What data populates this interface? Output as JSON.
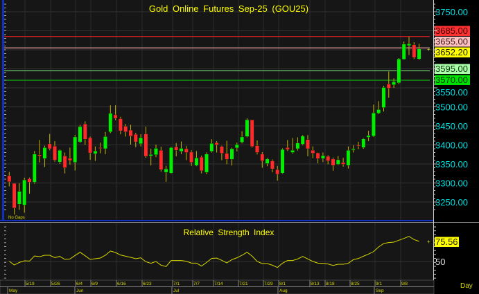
{
  "window": {
    "no_gaps_label": "No Gaps",
    "period_label": "Day"
  },
  "chart_data": [
    {
      "type": "candlestick",
      "title": "Gold Online Futures Sep-25 (GOU25)",
      "ylim": [
        3200,
        3780
      ],
      "y_ticks": [
        "3750.00",
        "3550.00",
        "3500.00",
        "3450.00",
        "3400.00",
        "3350.00",
        "3300.00",
        "3250.00"
      ],
      "y_tick_values": [
        3750,
        3550,
        3500,
        3450,
        3400,
        3350,
        3300,
        3250
      ],
      "grid": true,
      "colors": {
        "up": "#00ee00",
        "down": "#ff2a2a",
        "wick": "#c8b400",
        "axis_text": "#00e0e0",
        "title": "#ffff00"
      },
      "levels": [
        {
          "value": 3685,
          "label": "3685.00",
          "line": "#e02020",
          "bg": "#ff3030",
          "fg": "#400000"
        },
        {
          "value": 3655,
          "label": "3655.00",
          "line": "#e8a0a0",
          "bg": "#ffc0c0",
          "fg": "#402020"
        },
        {
          "value": 3652.2,
          "label": "3652.20",
          "line": null,
          "bg": "#ffff00",
          "fg": "#202000"
        },
        {
          "value": 3595,
          "label": "3595.00",
          "line": "#70d070",
          "bg": "#a8ffa8",
          "fg": "#103010"
        },
        {
          "value": 3570,
          "label": "3570.00",
          "line": "#10b010",
          "bg": "#00e000",
          "fg": "#003000"
        }
      ],
      "ohlc": [
        [
          3319,
          3329,
          3291,
          3303
        ],
        [
          3299,
          3299,
          3217,
          3234
        ],
        [
          3244,
          3299,
          3229,
          3278
        ],
        [
          3242,
          3314,
          3222,
          3308
        ],
        [
          3311,
          3314,
          3272,
          3302
        ],
        [
          3302,
          3384,
          3298,
          3376
        ],
        [
          3374,
          3413,
          3354,
          3371
        ],
        [
          3364,
          3398,
          3342,
          3393
        ],
        [
          3403,
          3429,
          3386,
          3390
        ],
        [
          3397,
          3410,
          3356,
          3360
        ],
        [
          3355,
          3388,
          3350,
          3386
        ],
        [
          3371,
          3380,
          3325,
          3340
        ],
        [
          3365,
          3393,
          3348,
          3359
        ],
        [
          3354,
          3426,
          3333,
          3421
        ],
        [
          3408,
          3453,
          3405,
          3448
        ],
        [
          3455,
          3462,
          3400,
          3415
        ],
        [
          3419,
          3422,
          3361,
          3379
        ],
        [
          3377,
          3396,
          3358,
          3384
        ],
        [
          3393,
          3406,
          3378,
          3391
        ],
        [
          3390,
          3434,
          3376,
          3422
        ],
        [
          3434,
          3504,
          3431,
          3483
        ],
        [
          3479,
          3504,
          3465,
          3470
        ],
        [
          3469,
          3474,
          3428,
          3437
        ],
        [
          3449,
          3455,
          3422,
          3434
        ],
        [
          3439,
          3453,
          3401,
          3423
        ],
        [
          3428,
          3432,
          3394,
          3408
        ],
        [
          3403,
          3428,
          3396,
          3419
        ],
        [
          3429,
          3448,
          3366,
          3370
        ],
        [
          3371,
          3390,
          3346,
          3375
        ],
        [
          3374,
          3401,
          3368,
          3391
        ],
        [
          3386,
          3395,
          3330,
          3335
        ],
        [
          3328,
          3345,
          3303,
          3337
        ],
        [
          3326,
          3395,
          3324,
          3393
        ],
        [
          3395,
          3405,
          3370,
          3386
        ],
        [
          3383,
          3409,
          3376,
          3391
        ],
        [
          3390,
          3397,
          3360,
          3380
        ],
        [
          3381,
          3386,
          3345,
          3354
        ],
        [
          3346,
          3384,
          3344,
          3366
        ],
        [
          3368,
          3372,
          3325,
          3332
        ],
        [
          3328,
          3380,
          3323,
          3376
        ],
        [
          3383,
          3415,
          3380,
          3404
        ],
        [
          3406,
          3410,
          3380,
          3400
        ],
        [
          3396,
          3398,
          3360,
          3378
        ],
        [
          3378,
          3411,
          3349,
          3362
        ],
        [
          3362,
          3393,
          3346,
          3390
        ],
        [
          3392,
          3406,
          3383,
          3401
        ],
        [
          3407,
          3436,
          3404,
          3421
        ],
        [
          3422,
          3470,
          3420,
          3466
        ],
        [
          3466,
          3466,
          3393,
          3396
        ],
        [
          3398,
          3412,
          3375,
          3380
        ],
        [
          3376,
          3381,
          3340,
          3358
        ],
        [
          3351,
          3366,
          3344,
          3363
        ],
        [
          3358,
          3362,
          3328,
          3337
        ],
        [
          3335,
          3345,
          3306,
          3323
        ],
        [
          3326,
          3391,
          3324,
          3388
        ],
        [
          3393,
          3413,
          3384,
          3388
        ],
        [
          3380,
          3418,
          3377,
          3386
        ],
        [
          3390,
          3420,
          3385,
          3405
        ],
        [
          3402,
          3426,
          3399,
          3423
        ],
        [
          3414,
          3426,
          3370,
          3390
        ],
        [
          3386,
          3396,
          3365,
          3378
        ],
        [
          3379,
          3380,
          3352,
          3364
        ],
        [
          3364,
          3380,
          3355,
          3372
        ],
        [
          3370,
          3373,
          3349,
          3358
        ],
        [
          3363,
          3367,
          3332,
          3346
        ],
        [
          3349,
          3371,
          3347,
          3361
        ],
        [
          3354,
          3366,
          3343,
          3349
        ],
        [
          3346,
          3396,
          3338,
          3386
        ],
        [
          3387,
          3399,
          3380,
          3390
        ],
        [
          3399,
          3408,
          3389,
          3397
        ],
        [
          3393,
          3418,
          3390,
          3416
        ],
        [
          3420,
          3437,
          3410,
          3425
        ],
        [
          3423,
          3506,
          3421,
          3484
        ],
        [
          3483,
          3515,
          3481,
          3493
        ],
        [
          3498,
          3555,
          3488,
          3551
        ],
        [
          3560,
          3593,
          3524,
          3549
        ],
        [
          3558,
          3575,
          3550,
          3566
        ],
        [
          3563,
          3628,
          3560,
          3626
        ],
        [
          3625,
          3672,
          3624,
          3665
        ],
        [
          3661,
          3684,
          3636,
          3666
        ],
        [
          3663,
          3670,
          3626,
          3630
        ],
        [
          3626,
          3666,
          3623,
          3652.2
        ]
      ],
      "x_date_labels": [
        "5/19",
        "5/26",
        "6/4",
        "6/9",
        "6/16",
        "6/23",
        "7/1",
        "7/7",
        "7/14",
        "7/21",
        "7/29",
        "8/1",
        "8/13",
        "8/18",
        "8/25",
        "9/1",
        "9/8"
      ],
      "x_month_labels": [
        "May",
        "Jun",
        "Jul",
        "Aug",
        "Sep"
      ]
    },
    {
      "type": "line",
      "title": "Relative Strength Index",
      "y_ticks": [
        "50"
      ],
      "last_value_label": "75.56",
      "color": "#d8d800",
      "values": [
        50.3,
        45.6,
        48.8,
        50.9,
        50.6,
        57.0,
        56.1,
        57.9,
        57.9,
        55.0,
        56.4,
        52.6,
        53.2,
        57.6,
        61.7,
        57.3,
        52.6,
        53.5,
        54.4,
        57.9,
        63.2,
        61.4,
        58.2,
        56.7,
        55.3,
        53.5,
        54.7,
        49.7,
        47.7,
        50.0,
        45.3,
        43.6,
        51.2,
        51.2,
        51.2,
        50.3,
        47.9,
        47.9,
        44.2,
        48.8,
        53.8,
        54.4,
        51.5,
        48.2,
        52.3,
        54.7,
        57.9,
        61.7,
        56.8,
        50.0,
        47.4,
        47.4,
        45.3,
        42.4,
        47.9,
        51.2,
        51.2,
        53.2,
        56.4,
        53.2,
        50.0,
        47.9,
        47.7,
        46.8,
        45.0,
        46.5,
        46.5,
        47.7,
        52.3,
        53.8,
        56.7,
        59.4,
        62.6,
        68.4,
        72.8,
        74.0,
        74.6,
        76.9,
        79.2,
        81.9,
        77.8,
        75.56
      ]
    }
  ]
}
